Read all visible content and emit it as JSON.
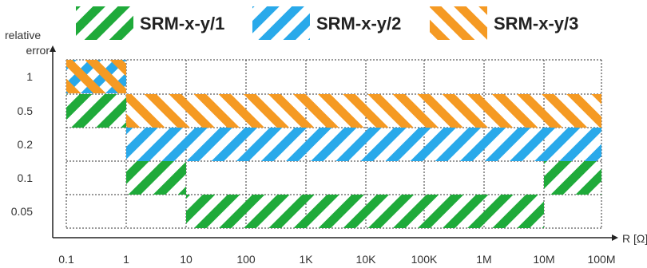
{
  "chart_data": {
    "type": "range-band",
    "xlabel": "R [Ω]",
    "ylabel_line1": "relative",
    "ylabel_line2": "error",
    "x_ticks": [
      "0.1",
      "1",
      "10",
      "100",
      "1K",
      "10K",
      "100K",
      "1M",
      "10M",
      "100M"
    ],
    "y_ticks": [
      "1",
      "0.5",
      "0.2",
      "0.1",
      "0.05"
    ],
    "xlim": [
      "0.1",
      "100M"
    ],
    "grid": true,
    "legend_position": "top",
    "series": [
      {
        "name": "SRM-x-y/1",
        "color": "#1faa3a",
        "bands": [
          {
            "r_from": "0.1",
            "r_to": "1",
            "error_from": "0.5",
            "error_to": "0.5"
          },
          {
            "r_from": "1",
            "r_to": "10",
            "error_from": "0.1",
            "error_to": "0.1"
          },
          {
            "r_from": "10",
            "r_to": "10M",
            "error_from": "0.05",
            "error_to": "0.05"
          },
          {
            "r_from": "10M",
            "r_to": "100M",
            "error_from": "0.1",
            "error_to": "0.1"
          }
        ]
      },
      {
        "name": "SRM-x-y/2",
        "color": "#29a9ea",
        "bands": [
          {
            "r_from": "0.1",
            "r_to": "1",
            "error_from": "1",
            "error_to": "1"
          },
          {
            "r_from": "1",
            "r_to": "100M",
            "error_from": "0.2",
            "error_to": "0.2"
          }
        ]
      },
      {
        "name": "SRM-x-y/3",
        "color": "#f59a23",
        "bands": [
          {
            "r_from": "0.1",
            "r_to": "1",
            "error_from": "1",
            "error_to": "1"
          },
          {
            "r_from": "1",
            "r_to": "100M",
            "error_from": "0.5",
            "error_to": "0.5"
          }
        ]
      }
    ]
  }
}
